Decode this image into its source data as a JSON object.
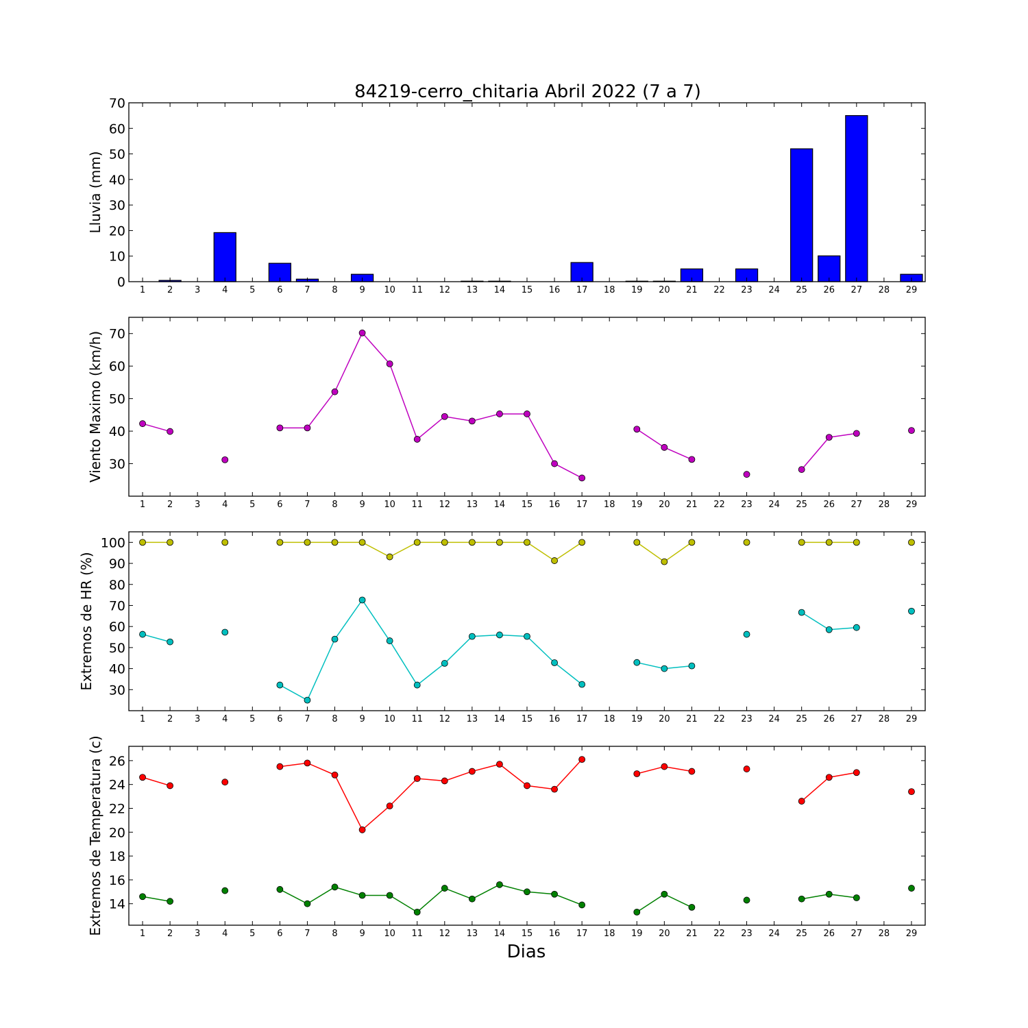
{
  "title": "84219-cerro_chitaria Abril 2022  (7 a 7)",
  "xlabel": "Dias",
  "colors": {
    "rain": "#0000ff",
    "wind": "#bf00bf",
    "hr_max": "#bfbf00",
    "hr_min": "#00bfbf",
    "t_max": "#ff0000",
    "t_min": "#008000"
  },
  "chart_data": [
    {
      "type": "bar",
      "ylabel": "Lluvia (mm)",
      "x": [
        1,
        2,
        3,
        4,
        5,
        6,
        7,
        8,
        9,
        10,
        11,
        12,
        13,
        14,
        15,
        16,
        17,
        18,
        19,
        20,
        21,
        22,
        23,
        24,
        25,
        26,
        27,
        28,
        29
      ],
      "xlim": [
        0.5,
        29.5
      ],
      "ylim": [
        0,
        70
      ],
      "yticks": [
        0,
        10,
        20,
        30,
        40,
        50,
        60,
        70
      ],
      "values": [
        0,
        0.5,
        0,
        19.2,
        0,
        7.2,
        1,
        0,
        2.9,
        0,
        0,
        0,
        0.2,
        0.2,
        0,
        0,
        7.5,
        0,
        0.2,
        0.2,
        5,
        0,
        5,
        0,
        52,
        10.1,
        65,
        0,
        2.9
      ]
    },
    {
      "type": "line",
      "ylabel": "Viento Maximo (km/h)",
      "x": [
        1,
        2,
        3,
        4,
        5,
        6,
        7,
        8,
        9,
        10,
        11,
        12,
        13,
        14,
        15,
        16,
        17,
        18,
        19,
        20,
        21,
        22,
        23,
        24,
        25,
        26,
        27,
        28,
        29
      ],
      "xlim": [
        0.5,
        29.5
      ],
      "ylim": [
        20,
        75
      ],
      "yticks": [
        30,
        40,
        50,
        60,
        70
      ],
      "series": [
        {
          "values": [
            42.3,
            39.9,
            null,
            31.2,
            null,
            41,
            41,
            52.1,
            70.2,
            60.7,
            37.5,
            44.5,
            43.1,
            45.3,
            45.3,
            30,
            25.6,
            null,
            40.6,
            35,
            31.3,
            null,
            26.7,
            null,
            28.2,
            38.1,
            39.3,
            null,
            40.2
          ]
        }
      ]
    },
    {
      "type": "line",
      "ylabel": "Extremos de HR (%)",
      "x": [
        1,
        2,
        3,
        4,
        5,
        6,
        7,
        8,
        9,
        10,
        11,
        12,
        13,
        14,
        15,
        16,
        17,
        18,
        19,
        20,
        21,
        22,
        23,
        24,
        25,
        26,
        27,
        28,
        29
      ],
      "xlim": [
        0.5,
        29.5
      ],
      "ylim": [
        20,
        105
      ],
      "yticks": [
        30,
        40,
        50,
        60,
        70,
        80,
        90,
        100
      ],
      "series": [
        {
          "values": [
            100,
            100,
            null,
            100,
            null,
            100,
            100,
            100,
            100,
            93.1,
            100,
            100,
            100,
            100,
            100,
            91.3,
            100,
            null,
            100,
            90.8,
            100,
            null,
            100,
            null,
            100,
            100,
            100,
            null,
            100
          ]
        },
        {
          "values": [
            56.3,
            52.7,
            null,
            57.3,
            null,
            32.2,
            25,
            54,
            72.6,
            53.2,
            32.2,
            42.5,
            55.3,
            56,
            55.3,
            42.8,
            32.5,
            null,
            42.9,
            40,
            41.3,
            null,
            56.3,
            null,
            66.7,
            58.5,
            59.5,
            null,
            67.3
          ]
        }
      ]
    },
    {
      "type": "line",
      "ylabel": "Extremos de Temperatura (c)",
      "x": [
        1,
        2,
        3,
        4,
        5,
        6,
        7,
        8,
        9,
        10,
        11,
        12,
        13,
        14,
        15,
        16,
        17,
        18,
        19,
        20,
        21,
        22,
        23,
        24,
        25,
        26,
        27,
        28,
        29
      ],
      "xlim": [
        0.5,
        29.5
      ],
      "ylim": [
        12.2,
        27.2
      ],
      "yticks": [
        14,
        16,
        18,
        20,
        22,
        24,
        26
      ],
      "series": [
        {
          "values": [
            24.6,
            23.9,
            null,
            24.2,
            null,
            25.5,
            25.8,
            24.8,
            20.2,
            22.2,
            24.5,
            24.3,
            25.1,
            25.7,
            23.9,
            23.6,
            26.1,
            null,
            24.9,
            25.5,
            25.1,
            null,
            25.3,
            null,
            22.6,
            24.6,
            25,
            null,
            23.4
          ]
        },
        {
          "values": [
            14.6,
            14.2,
            null,
            15.1,
            null,
            15.2,
            14,
            15.4,
            14.7,
            14.7,
            13.3,
            15.3,
            14.4,
            15.6,
            15,
            14.8,
            13.9,
            null,
            13.3,
            14.8,
            13.7,
            null,
            14.3,
            null,
            14.4,
            14.8,
            14.5,
            null,
            15.3
          ]
        }
      ]
    }
  ]
}
